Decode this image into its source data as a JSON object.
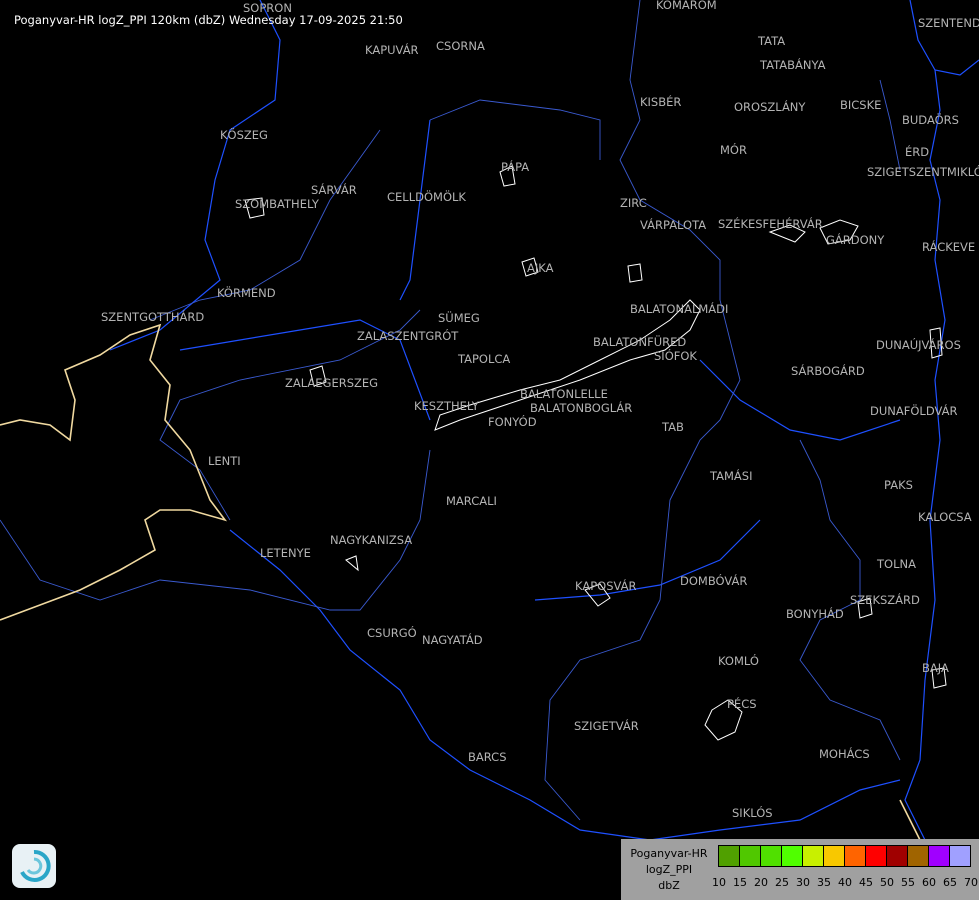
{
  "header": {
    "title": "Poganyvar-HR logZ_PPI 120km (dbZ) Wednesday 17-09-2025 21:50"
  },
  "map": {
    "colors": {
      "background": "#000000",
      "rivers": "#1e50ff",
      "borders": "#f0d9a0",
      "counties": "#3a5ad0",
      "echoes": "#ffffff",
      "labels": "#b4b4b4"
    },
    "cities": [
      "SOPRON",
      "KOMÁROM",
      "SZENTENDRE",
      "KAPUVÁR",
      "CSORNA",
      "TATA",
      "TATABÁNYA",
      "KISBÉR",
      "OROSZLÁNY",
      "BICSKE",
      "KŐSZEG",
      "BUDAÖRS",
      "MÓR",
      "ÉRD",
      "SZIGETSZENTMIKLÓS",
      "PÁPA",
      "SÁRVÁR",
      "CELLDÖMÖLK",
      "SZOMBATHELY",
      "ZIRC",
      "VÁRPALOTA",
      "SZÉKESFEHÉRVÁR",
      "GÁRDONY",
      "RÁCKEVE",
      "AJKA",
      "KÖRMEND",
      "BALATONALMÁDI",
      "SZENTGOTTHÁRD",
      "SÜMEG",
      "ZALASZENTGRÓT",
      "BALATONFÜRED",
      "SIÓFOK",
      "DUNAÚJVÁROS",
      "TAPOLCA",
      "SÁRBOGÁRD",
      "ZALAEGERSZEG",
      "BALATONLELLE",
      "BALATONBOGLÁR",
      "KESZTHELY",
      "DUNAFÖLDVÁR",
      "FONYÓD",
      "TAB",
      "LENTI",
      "TAMÁSI",
      "PAKS",
      "MARCALI",
      "KALOCSA",
      "NAGYKANIZSA",
      "LETENYE",
      "TOLNA",
      "KAPOSVÁR",
      "DOMBÓVÁR",
      "SZEKSZÁRD",
      "BONYHÁD",
      "CSURGÓ",
      "NAGYATÁD",
      "KOMLÓ",
      "BAJA",
      "PÉCS",
      "SZIGETVÁR",
      "MOHÁCS",
      "BARCS",
      "SIKLÓS"
    ]
  },
  "legend": {
    "lines": [
      "Poganyvar-HR",
      "logZ_PPI",
      "dbZ"
    ],
    "ticks": [
      "10",
      "15",
      "20",
      "25",
      "30",
      "35",
      "40",
      "45",
      "50",
      "55",
      "60",
      "65",
      "70"
    ],
    "colors": [
      "#50a000",
      "#50c800",
      "#50e000",
      "#50ff00",
      "#c8f000",
      "#f8c800",
      "#ff6400",
      "#ff0000",
      "#a00000",
      "#a06400",
      "#a000ff",
      "#a0a0ff"
    ]
  },
  "logo": {
    "icon": "radar-swirl-logo"
  }
}
